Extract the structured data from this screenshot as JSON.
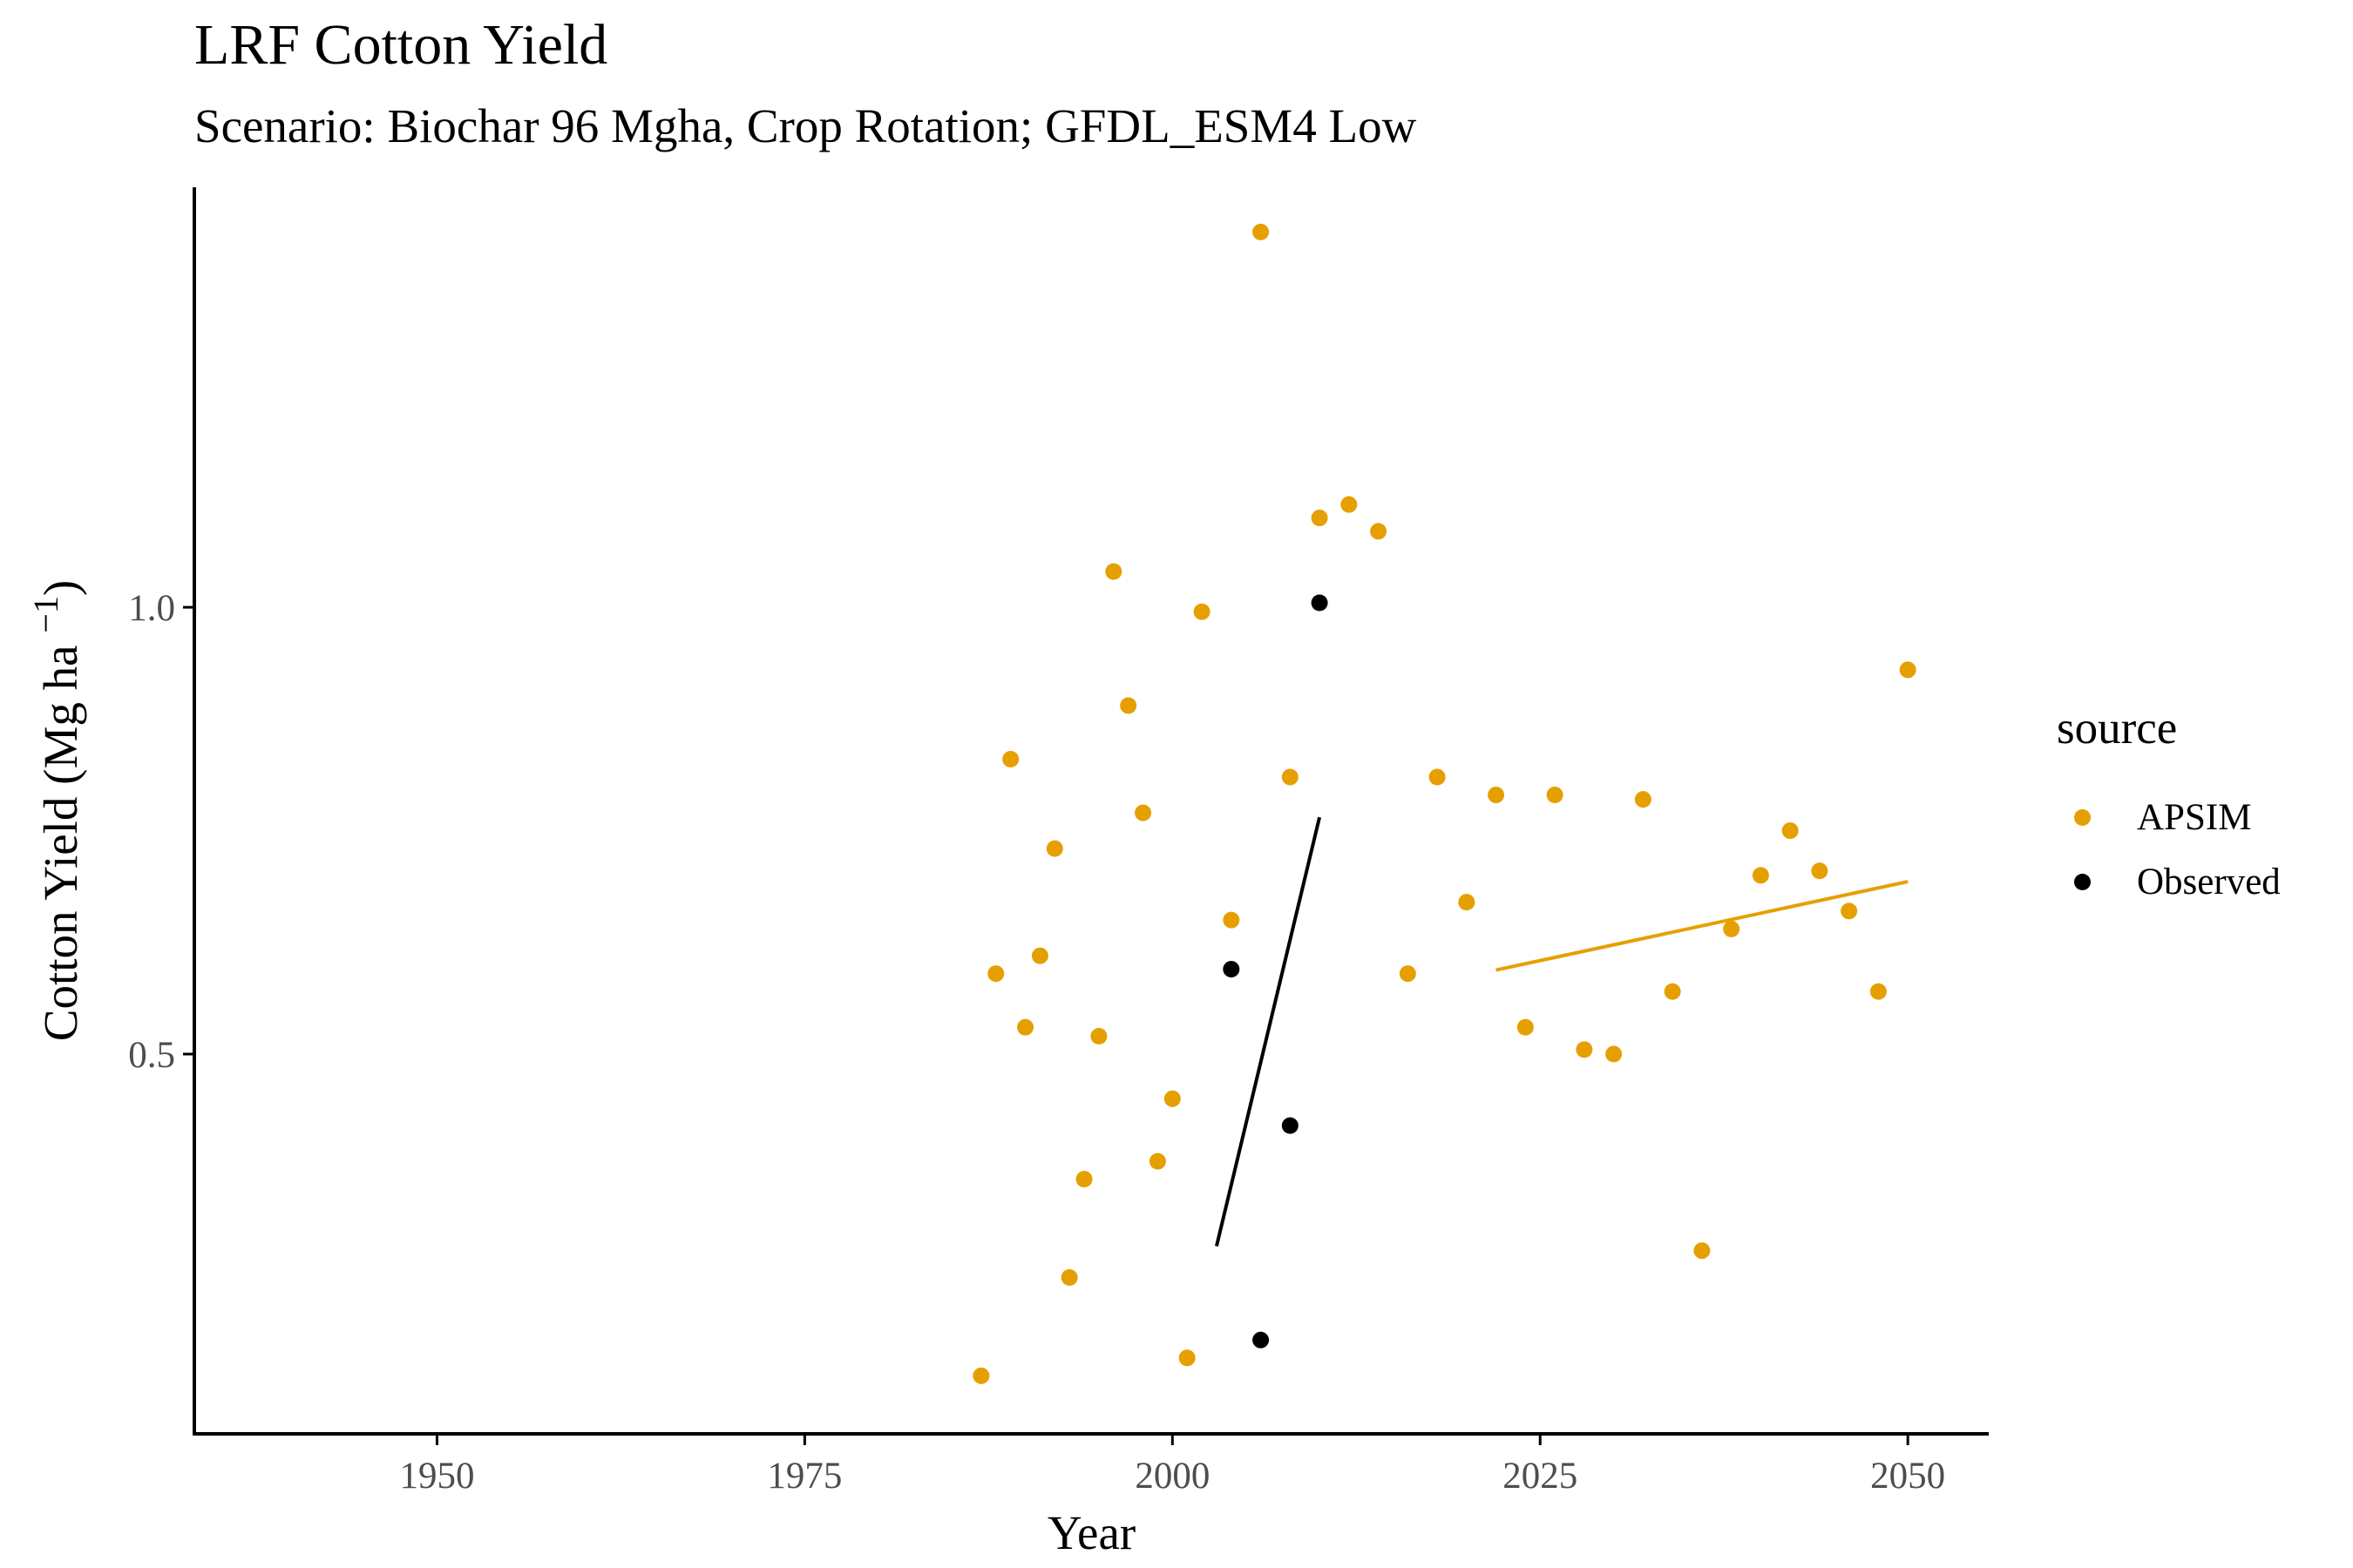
{
  "title": "LRF Cotton Yield",
  "subtitle": "Scenario: Biochar 96 Mgha, Crop Rotation; GFDL_ESM4 Low",
  "colors": {
    "APSIM": "#E69F00",
    "Observed": "#000000",
    "axis": "#000000",
    "tick_label": "#4D4D4D"
  },
  "chart_data": {
    "type": "scatter",
    "xlabel": "Year",
    "ylabel": "Cotton Yield (Mg ha",
    "ylabel_sup": "−1",
    "ylabel_close": ")",
    "xlim": [
      1933.5,
      2055.5
    ],
    "ylim": [
      0.075,
      1.47
    ],
    "x_ticks": [
      1950,
      1975,
      2000,
      2025,
      2050
    ],
    "x_tick_labels": [
      "1950",
      "1975",
      "2000",
      "2025",
      "2050"
    ],
    "y_ticks": [
      0.5,
      1.0
    ],
    "y_tick_labels": [
      "0.5",
      "1.0"
    ],
    "grid": false,
    "legend": {
      "title": "source",
      "position": "right",
      "entries": [
        "APSIM",
        "Observed"
      ]
    },
    "series": [
      {
        "name": "APSIM",
        "points": [
          [
            1987,
            0.14
          ],
          [
            1988,
            0.59
          ],
          [
            1989,
            0.83
          ],
          [
            1990,
            0.53
          ],
          [
            1991,
            0.61
          ],
          [
            1992,
            0.73
          ],
          [
            1993,
            0.25
          ],
          [
            1994,
            0.36
          ],
          [
            1995,
            0.52
          ],
          [
            1996,
            1.04
          ],
          [
            1997,
            0.89
          ],
          [
            1998,
            0.77
          ],
          [
            1999,
            0.38
          ],
          [
            2000,
            0.45
          ],
          [
            2001,
            0.16
          ],
          [
            2002,
            0.995
          ],
          [
            2004,
            0.65
          ],
          [
            2006,
            1.42
          ],
          [
            2008,
            0.81
          ],
          [
            2010,
            1.1
          ],
          [
            2012,
            1.115
          ],
          [
            2014,
            1.085
          ],
          [
            2016,
            0.59
          ],
          [
            2018,
            0.81
          ],
          [
            2020,
            0.67
          ],
          [
            2022,
            0.79
          ],
          [
            2024,
            0.53
          ],
          [
            2026,
            0.79
          ],
          [
            2028,
            0.505
          ],
          [
            2030,
            0.5
          ],
          [
            2032,
            0.785
          ],
          [
            2034,
            0.57
          ],
          [
            2036,
            0.28
          ],
          [
            2038,
            0.64
          ],
          [
            2040,
            0.7
          ],
          [
            2042,
            0.75
          ],
          [
            2044,
            0.705
          ],
          [
            2046,
            0.66
          ],
          [
            2048,
            0.57
          ],
          [
            2050,
            0.93
          ]
        ],
        "trend": [
          [
            2022,
            0.594
          ],
          [
            2050,
            0.693
          ]
        ]
      },
      {
        "name": "Observed",
        "points": [
          [
            2004,
            0.595
          ],
          [
            2006,
            0.18
          ],
          [
            2008,
            0.42
          ],
          [
            2010,
            1.005
          ]
        ],
        "trend": [
          [
            2003,
            0.285
          ],
          [
            2010,
            0.765
          ]
        ]
      }
    ]
  }
}
